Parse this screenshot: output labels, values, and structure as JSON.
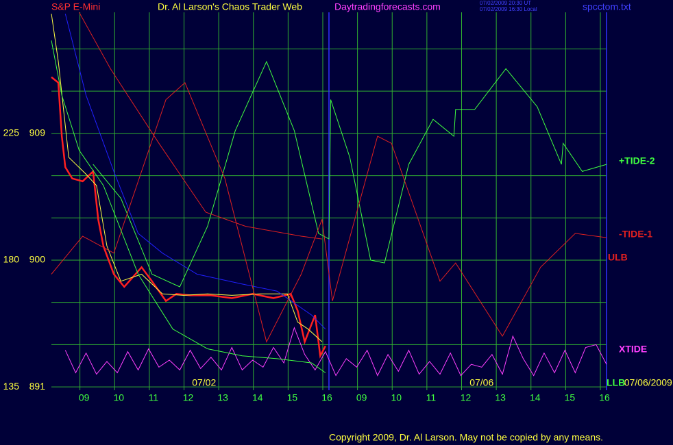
{
  "chart_data": {
    "type": "line",
    "title": "Dr. Al Larson's Chaos Trader Web",
    "instrument": "S&P E-Mini",
    "site": "Daytradingforecasts.com",
    "timestamps": [
      "07/02/2009 20:30 UT",
      "07/02/2009 16:30 Local"
    ],
    "file": "spcctom.txt",
    "date_labels": [
      {
        "x": 4.4,
        "text": "07/02"
      },
      {
        "x": 12.4,
        "text": "07/06"
      },
      {
        "x": 17.2,
        "text": "07/06/2009"
      }
    ],
    "copyright": "Copyright 2009, Dr. Al Larson. May not be copied by any means.",
    "divider_x": 8,
    "xlim": [
      0,
      16
    ],
    "xticks": [
      {
        "value": 1,
        "label": "09"
      },
      {
        "value": 2,
        "label": "10"
      },
      {
        "value": 3,
        "label": "11"
      },
      {
        "value": 4,
        "label": "12"
      },
      {
        "value": 5,
        "label": "13"
      },
      {
        "value": 6,
        "label": "14"
      },
      {
        "value": 7,
        "label": "15"
      },
      {
        "value": 8,
        "label": "16"
      },
      {
        "value": 9,
        "label": "09"
      },
      {
        "value": 10,
        "label": "10"
      },
      {
        "value": 11,
        "label": "11"
      },
      {
        "value": 12,
        "label": "12"
      },
      {
        "value": 13,
        "label": "13"
      },
      {
        "value": 14,
        "label": "14"
      },
      {
        "value": 15,
        "label": "15"
      },
      {
        "value": 16,
        "label": "16"
      }
    ],
    "ylim": [
      890.76,
      917.6
    ],
    "yticks": [
      891,
      900,
      909
    ],
    "minor_yticks": [
      894,
      897,
      903,
      906,
      912,
      915
    ],
    "y2lim": [
      133.8,
      268
    ],
    "y2ticks": [
      135,
      180,
      225
    ],
    "grid": true,
    "series": [
      {
        "color": "#ff2020",
        "width": 2.5,
        "x": [
          0,
          0.2,
          0.3,
          0.4,
          0.6,
          0.9,
          1.2,
          1.35,
          1.5,
          1.8,
          2.1,
          2.6,
          2.9,
          3.3,
          3.6,
          4.0,
          4.6,
          5.2,
          5.8,
          6.4,
          6.9,
          7.1,
          7.3,
          7.6,
          7.75,
          7.9
        ],
        "values": [
          913.0,
          912.6,
          908.8,
          906.6,
          905.8,
          905.6,
          906.3,
          902.9,
          901.0,
          899.0,
          898.1,
          899.5,
          898.5,
          897.1,
          897.6,
          897.5,
          897.5,
          897.3,
          897.6,
          897.3,
          897.6,
          896.4,
          894.2,
          896.1,
          893.2,
          893.9
        ]
      },
      {
        "color": "#ffff40",
        "width": 1,
        "x": [
          0,
          0.2,
          0.5,
          1.0,
          1.3,
          1.6,
          2.0,
          2.6,
          3.2,
          3.8,
          4.5,
          5.2,
          6.0,
          6.8,
          7.1,
          7.4,
          7.8
        ],
        "values": [
          917.5,
          914.1,
          907.3,
          906.1,
          905.3,
          901.0,
          898.5,
          899.0,
          897.6,
          897.5,
          897.6,
          897.5,
          897.6,
          897.6,
          895.6,
          895.1,
          894.2
        ]
      },
      {
        "color": "#2020ff",
        "width": 1,
        "x": [
          0.4,
          1.0,
          1.8,
          2.5,
          3.2,
          4.2,
          5.5,
          6.5,
          7.5,
          7.9
        ],
        "values": [
          917.5,
          911.7,
          906.3,
          901.9,
          900.5,
          899.0,
          898.3,
          897.8,
          896.1,
          895.1
        ]
      },
      {
        "name": "+TIDE-2",
        "color": "#40ff40",
        "width": 1,
        "x": [
          1.2,
          2.0,
          2.9,
          3.7,
          4.5,
          5.3,
          6.2,
          7.0,
          7.7,
          8.0,
          8.05,
          8.6,
          9.2,
          9.6,
          10.3,
          11.0,
          11.6,
          11.65,
          12.2,
          13.1,
          13.9,
          14.0,
          14.7,
          14.75,
          15.3,
          16
        ],
        "values": [
          906.8,
          904.4,
          899.0,
          898.1,
          902.4,
          909.2,
          914.1,
          909.2,
          901.9,
          901.5,
          911.4,
          907.3,
          900.0,
          899.8,
          906.8,
          910.0,
          908.8,
          910.7,
          910.7,
          913.6,
          911.2,
          910.9,
          906.8,
          908.3,
          906.3,
          906.8
        ]
      },
      {
        "name": "-TIDE-1",
        "color": "#e02020",
        "width": 1,
        "x": [
          0,
          0.9,
          1.8,
          3.3,
          3.85,
          5.0,
          6.2,
          7.2,
          7.8,
          8.1,
          9.4,
          9.8,
          11.2,
          11.65,
          13.0,
          14.1,
          15.1,
          16
        ],
        "values": [
          899.0,
          901.7,
          900.5,
          911.4,
          912.6,
          905.8,
          894.2,
          899.0,
          902.9,
          897.1,
          908.8,
          908.3,
          898.5,
          899.8,
          894.6,
          899.5,
          901.9,
          901.6
        ]
      },
      {
        "name": "ULB",
        "color": "#e02020",
        "width": 1,
        "x": [
          0.8,
          1.7,
          3.1,
          4.45,
          5.6,
          7.2,
          7.8
        ],
        "values": [
          917.6,
          913.6,
          908.3,
          903.4,
          902.4,
          901.7,
          901.5
        ]
      },
      {
        "name": "XTIDE",
        "color": "#ff40ff",
        "width": 1,
        "x": [
          0.4,
          0.7,
          1.0,
          1.3,
          1.6,
          1.9,
          2.2,
          2.5,
          2.8,
          3.1,
          3.4,
          3.7,
          4.0,
          4.3,
          4.6,
          4.9,
          5.2,
          5.5,
          5.8,
          6.1,
          6.4,
          6.7,
          7.0,
          7.3,
          7.6,
          7.9,
          8.2,
          8.5,
          8.8,
          9.1,
          9.4,
          9.7,
          10.0,
          10.3,
          10.6,
          10.9,
          11.2,
          11.5,
          11.8,
          12.1,
          12.4,
          12.7,
          13.0,
          13.3,
          13.6,
          13.9,
          14.2,
          14.5,
          14.8,
          15.1,
          15.4,
          15.7,
          16.0
        ],
        "values": [
          893.6,
          892.0,
          893.4,
          891.9,
          892.8,
          892.0,
          893.5,
          892.2,
          893.7,
          892.4,
          892.9,
          892.2,
          893.6,
          892.3,
          893.1,
          892.2,
          893.8,
          892.2,
          892.9,
          892.4,
          893.8,
          892.7,
          895.2,
          893.3,
          892.2,
          893.5,
          891.8,
          893.0,
          892.4,
          893.6,
          891.8,
          893.3,
          892.1,
          893.6,
          891.9,
          892.8,
          891.9,
          893.4,
          891.8,
          892.6,
          892.4,
          893.3,
          891.9,
          894.6,
          893.0,
          891.8,
          893.4,
          892.0,
          893.6,
          892.0,
          893.8,
          894.0,
          892.6
        ]
      },
      {
        "name": "LLB",
        "color": "#40ff40",
        "width": 1,
        "x": [
          0,
          0.3,
          0.8,
          1.5,
          2.5,
          3.5,
          4.5,
          5.5,
          6.5,
          7.5,
          7.9
        ],
        "values": [
          915.6,
          911.7,
          907.8,
          905.3,
          899.0,
          895.1,
          893.7,
          893.2,
          893.0,
          892.7,
          892.0
        ]
      }
    ]
  }
}
